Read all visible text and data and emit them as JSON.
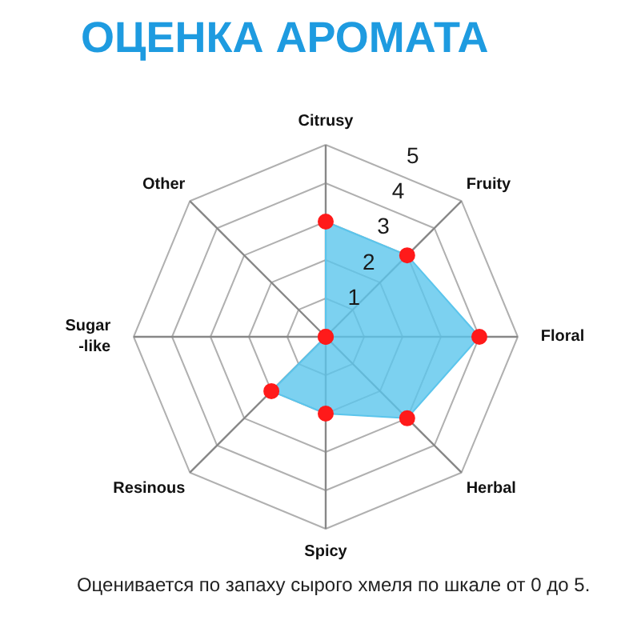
{
  "chart_data": {
    "type": "radar",
    "title": "ОЦЕНКА АРОМАТА",
    "categories": [
      "Citrusy",
      "Fruity",
      "Floral",
      "Herbal",
      "Spicy",
      "Resinous",
      "Sugar\n-like",
      "Other"
    ],
    "series": [
      {
        "color": "#5bc5ec",
        "values": [
          3,
          3,
          4,
          3,
          2,
          2,
          0,
          0
        ]
      }
    ],
    "ylim": [
      0,
      5
    ],
    "yticks": [
      1,
      2,
      3,
      4,
      5
    ],
    "grid": true,
    "marker": "circle",
    "annotations": [
      "Оценивается по запаху сырого хмеля по шкале от 0 до 5."
    ]
  }
}
